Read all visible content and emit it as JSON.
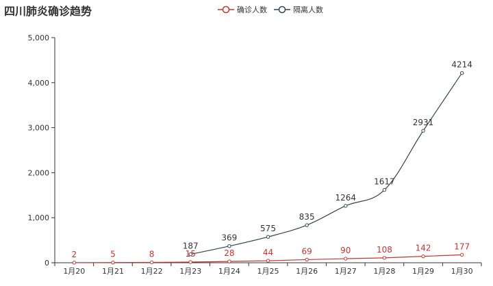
{
  "chart_data": {
    "type": "line",
    "title": "四川肺炎确诊趋势",
    "categories": [
      "1月20",
      "1月21",
      "1月22",
      "1月23",
      "1月24",
      "1月25",
      "1月26",
      "1月27",
      "1月28",
      "1月29",
      "1月30"
    ],
    "ylim": [
      0,
      5000
    ],
    "yticks": [
      0,
      1000,
      2000,
      3000,
      4000,
      5000
    ],
    "ytick_labels": [
      "0",
      "1,000",
      "2,000",
      "3,000",
      "4,000",
      "5,000"
    ],
    "legend_position": "top-center",
    "grid": false,
    "series": [
      {
        "name": "确诊人数",
        "color": "#c23531",
        "values": [
          2,
          5,
          8,
          15,
          28,
          44,
          69,
          90,
          108,
          142,
          177
        ]
      },
      {
        "name": "隔离人数",
        "color": "#2f4554",
        "values": [
          null,
          null,
          null,
          187,
          369,
          575,
          835,
          1264,
          1617,
          2931,
          4214
        ]
      }
    ]
  }
}
